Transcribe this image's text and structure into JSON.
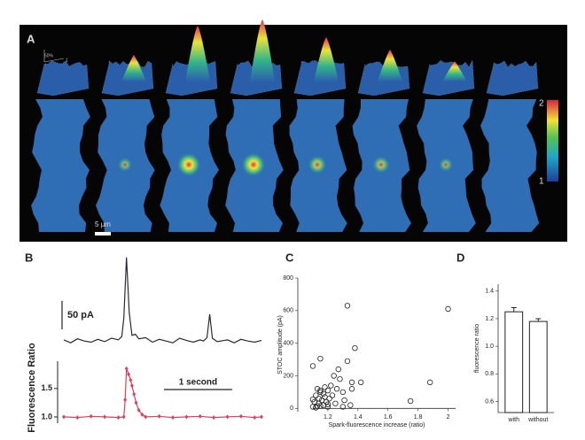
{
  "image_panel": {
    "panel_label": "A",
    "inset_labels": [
      "50%",
      "1"
    ],
    "colorbar_labels": [
      "2",
      "1"
    ],
    "scale_bar_label": "5 µm"
  },
  "chart_data": [
    {
      "type": "line",
      "panel_label": "B",
      "color": "#2a2a35",
      "x": [
        0,
        0.1,
        0.2,
        0.3,
        0.4,
        0.5,
        0.6,
        0.7,
        0.8,
        0.85,
        0.88,
        0.92,
        0.96,
        1.0,
        1.05,
        1.1,
        1.2,
        1.3,
        1.4,
        1.5,
        1.6,
        1.7,
        1.8,
        1.9,
        2.0,
        2.05,
        2.1,
        2.14,
        2.18,
        2.25,
        2.4,
        2.5,
        2.6,
        2.7,
        2.8,
        2.9
      ],
      "values": [
        2,
        -3,
        4,
        0,
        -2,
        3,
        -1,
        5,
        2,
        8,
        40,
        147,
        50,
        10,
        12,
        4,
        6,
        -2,
        3,
        0,
        -3,
        5,
        1,
        -2,
        2,
        0,
        6,
        47,
        5,
        -1,
        2,
        -3,
        3,
        0,
        -2,
        1
      ],
      "xlim": [
        0,
        2.9
      ],
      "ylim": [
        -23,
        156
      ],
      "scale_bar": {
        "value": 50,
        "label": "50 pA"
      }
    },
    {
      "type": "line",
      "y_label": "Fluorescence Ratio",
      "color": "#e0405a",
      "markers": true,
      "x": [
        0,
        0.2,
        0.4,
        0.6,
        0.8,
        0.88,
        0.9,
        0.92,
        0.95,
        0.98,
        1.0,
        1.03,
        1.06,
        1.1,
        1.15,
        1.2,
        1.4,
        1.6,
        1.8,
        2.0,
        2.2,
        2.4,
        2.6,
        2.8,
        2.9
      ],
      "values": [
        1.0,
        0.99,
        1.01,
        1.0,
        0.99,
        1.0,
        1.3,
        1.85,
        1.75,
        1.65,
        1.55,
        1.4,
        1.25,
        1.12,
        1.04,
        1.0,
        1.01,
        0.99,
        1.0,
        1.01,
        0.99,
        1.0,
        1.01,
        0.99,
        1.0
      ],
      "xlim": [
        0,
        2.9
      ],
      "ylim": [
        0.89,
        1.98
      ],
      "yticks": [
        {
          "value": 1,
          "label": "1.0"
        },
        {
          "value": 1.5,
          "label": "1.5"
        }
      ],
      "scale_bar": {
        "value": 1,
        "label": "1 second"
      }
    },
    {
      "type": "scatter",
      "panel_label": "C",
      "x_label": "Spark-fluorescence increase (ratio)",
      "y_label": "STOC amplitude (pA)",
      "color": "#222222",
      "x": [
        1.1,
        1.11,
        1.12,
        1.12,
        1.13,
        1.14,
        1.14,
        1.15,
        1.15,
        1.16,
        1.17,
        1.17,
        1.18,
        1.18,
        1.19,
        1.2,
        1.2,
        1.21,
        1.22,
        1.23,
        1.24,
        1.25,
        1.26,
        1.27,
        1.28,
        1.3,
        1.31,
        1.33,
        1.35,
        1.36,
        1.38,
        1.42,
        1.12,
        1.15,
        1.2,
        1.1,
        1.13,
        1.3,
        1.33,
        1.36,
        1.75,
        1.88,
        2.0,
        1.15,
        1.1
      ],
      "values": [
        10,
        40,
        80,
        5,
        120,
        30,
        60,
        100,
        15,
        50,
        90,
        20,
        130,
        70,
        40,
        110,
        25,
        60,
        140,
        80,
        200,
        30,
        120,
        240,
        180,
        100,
        50,
        630,
        20,
        160,
        370,
        160,
        5,
        305,
        10,
        260,
        15,
        10,
        290,
        120,
        45,
        160,
        610,
        110,
        55
      ],
      "xlim": [
        1.0,
        2.05
      ],
      "xticks": [
        1.2,
        1.4,
        1.6,
        1.8,
        2
      ],
      "ylim": [
        -20,
        800
      ],
      "yticks": [
        0,
        200,
        400,
        600,
        800
      ]
    },
    {
      "type": "bar",
      "panel_label": "D",
      "y_label": "fluorescence ratio",
      "color": "#ffffff",
      "categories": [
        "with",
        "without"
      ],
      "values": [
        1.25,
        1.18
      ],
      "errors": [
        0.03,
        0.02
      ],
      "ylim": [
        0.52,
        1.45
      ],
      "yticks": [
        0.6,
        0.8,
        {
          "value": 1,
          "label": "1.0"
        },
        1.2,
        1.4
      ]
    }
  ]
}
